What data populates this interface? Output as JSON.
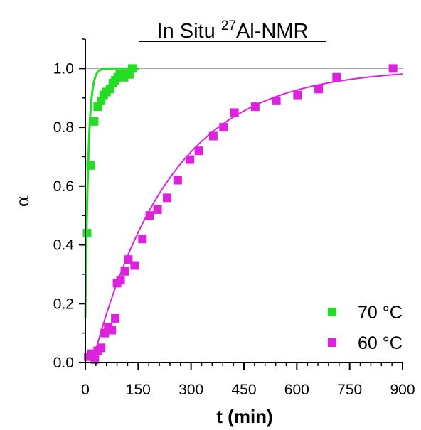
{
  "chart_data": {
    "type": "scatter",
    "title_main": "In Situ ",
    "title_sup": "27",
    "title_rest": "Al-NMR",
    "xlabel": "t (min)",
    "ylabel": "α",
    "xlim": [
      0,
      900
    ],
    "ylim": [
      0,
      1.1
    ],
    "x_ticks": [
      "0",
      "150",
      "300",
      "450",
      "600",
      "750",
      "900"
    ],
    "y_ticks": [
      "0.0",
      "0.2",
      "0.4",
      "0.6",
      "0.8",
      "1.0"
    ],
    "reference_line_y": 1.0,
    "legend_position": "bottom-right",
    "series": [
      {
        "name": "70 °C",
        "color": "#22dd22",
        "points": [
          [
            5,
            0.44
          ],
          [
            15,
            0.67
          ],
          [
            25,
            0.82
          ],
          [
            35,
            0.87
          ],
          [
            45,
            0.89
          ],
          [
            52,
            0.91
          ],
          [
            60,
            0.92
          ],
          [
            70,
            0.93
          ],
          [
            78,
            0.95
          ],
          [
            85,
            0.96
          ],
          [
            92,
            0.97
          ],
          [
            98,
            0.98
          ],
          [
            105,
            0.98
          ],
          [
            110,
            0.97
          ],
          [
            118,
            0.98
          ],
          [
            125,
            0.98
          ],
          [
            133,
            1.0
          ]
        ],
        "fit": {
          "kind": "exponential",
          "k": 0.12,
          "t0": 0,
          "a0": 0.15
        }
      },
      {
        "name": "60 °C",
        "color": "#dd22dd",
        "points": [
          [
            8,
            0.02
          ],
          [
            18,
            0.03
          ],
          [
            27,
            0.01
          ],
          [
            35,
            0.04
          ],
          [
            45,
            0.05
          ],
          [
            55,
            0.1
          ],
          [
            65,
            0.12
          ],
          [
            75,
            0.11
          ],
          [
            85,
            0.15
          ],
          [
            90,
            0.27
          ],
          [
            100,
            0.28
          ],
          [
            112,
            0.31
          ],
          [
            122,
            0.35
          ],
          [
            140,
            0.33
          ],
          [
            162,
            0.42
          ],
          [
            183,
            0.5
          ],
          [
            205,
            0.52
          ],
          [
            232,
            0.56
          ],
          [
            262,
            0.62
          ],
          [
            297,
            0.69
          ],
          [
            322,
            0.72
          ],
          [
            363,
            0.77
          ],
          [
            392,
            0.8
          ],
          [
            423,
            0.85
          ],
          [
            482,
            0.87
          ],
          [
            542,
            0.89
          ],
          [
            602,
            0.91
          ],
          [
            662,
            0.93
          ],
          [
            713,
            0.97
          ],
          [
            873,
            1.0
          ]
        ],
        "fit": {
          "kind": "exponential",
          "k": 0.0045,
          "t0": 20,
          "a0": 0
        }
      }
    ]
  }
}
